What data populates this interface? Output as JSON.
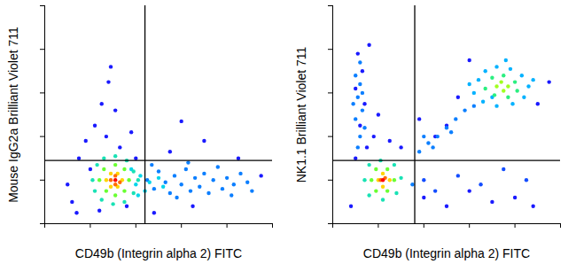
{
  "chart_data": [
    {
      "type": "scatter",
      "x_label": "CD49b (Integrin alpha 2) FITC",
      "y_label": "Mouse IgG2a Brilliant Violet 711",
      "xlim": [
        0,
        100
      ],
      "ylim": [
        0,
        100
      ],
      "xticks": [
        0,
        20,
        40,
        60,
        80,
        100
      ],
      "yticks": [
        0,
        20,
        40,
        60,
        80,
        100
      ],
      "tick_labels": false,
      "gates": {
        "x": 44,
        "y": 29
      },
      "points": [
        {
          "x": 12,
          "y": 10,
          "density": 0.1
        },
        {
          "x": 15,
          "y": 30,
          "density": 0.1
        },
        {
          "x": 18,
          "y": 38,
          "density": 0.1
        },
        {
          "x": 22,
          "y": 45,
          "density": 0.1
        },
        {
          "x": 25,
          "y": 55,
          "density": 0.1
        },
        {
          "x": 28,
          "y": 65,
          "density": 0.1
        },
        {
          "x": 29,
          "y": 72,
          "density": 0.1
        },
        {
          "x": 31,
          "y": 52,
          "density": 0.1
        },
        {
          "x": 27,
          "y": 40,
          "density": 0.1
        },
        {
          "x": 33,
          "y": 35,
          "density": 0.1
        },
        {
          "x": 20,
          "y": 25,
          "density": 0.1
        },
        {
          "x": 10,
          "y": 18,
          "density": 0.1
        },
        {
          "x": 14,
          "y": 5,
          "density": 0.1
        },
        {
          "x": 24,
          "y": 6,
          "density": 0.1
        },
        {
          "x": 36,
          "y": 8,
          "density": 0.1
        },
        {
          "x": 40,
          "y": 30,
          "density": 0.1
        },
        {
          "x": 38,
          "y": 42,
          "density": 0.1
        },
        {
          "x": 60,
          "y": 47,
          "density": 0.1
        },
        {
          "x": 70,
          "y": 38,
          "density": 0.1
        },
        {
          "x": 55,
          "y": 33,
          "density": 0.1
        },
        {
          "x": 85,
          "y": 30,
          "density": 0.1
        },
        {
          "x": 95,
          "y": 22,
          "density": 0.1
        },
        {
          "x": 48,
          "y": 5,
          "density": 0.1
        },
        {
          "x": 65,
          "y": 8,
          "density": 0.1
        },
        {
          "x": 45,
          "y": 20,
          "density": 0.2
        },
        {
          "x": 48,
          "y": 16,
          "density": 0.2
        },
        {
          "x": 50,
          "y": 24,
          "density": 0.2
        },
        {
          "x": 53,
          "y": 19,
          "density": 0.2
        },
        {
          "x": 55,
          "y": 14,
          "density": 0.2
        },
        {
          "x": 57,
          "y": 22,
          "density": 0.2
        },
        {
          "x": 60,
          "y": 18,
          "density": 0.2
        },
        {
          "x": 62,
          "y": 25,
          "density": 0.2
        },
        {
          "x": 64,
          "y": 15,
          "density": 0.2
        },
        {
          "x": 66,
          "y": 21,
          "density": 0.2
        },
        {
          "x": 68,
          "y": 17,
          "density": 0.2
        },
        {
          "x": 70,
          "y": 23,
          "density": 0.2
        },
        {
          "x": 72,
          "y": 14,
          "density": 0.2
        },
        {
          "x": 74,
          "y": 20,
          "density": 0.2
        },
        {
          "x": 76,
          "y": 26,
          "density": 0.2
        },
        {
          "x": 78,
          "y": 16,
          "density": 0.2
        },
        {
          "x": 80,
          "y": 21,
          "density": 0.2
        },
        {
          "x": 83,
          "y": 18,
          "density": 0.2
        },
        {
          "x": 86,
          "y": 23,
          "density": 0.2
        },
        {
          "x": 89,
          "y": 19,
          "density": 0.2
        },
        {
          "x": 91,
          "y": 15,
          "density": 0.2
        },
        {
          "x": 47,
          "y": 27,
          "density": 0.2
        },
        {
          "x": 58,
          "y": 12,
          "density": 0.2
        },
        {
          "x": 63,
          "y": 28,
          "density": 0.2
        },
        {
          "x": 82,
          "y": 13,
          "density": 0.2
        },
        {
          "x": 40,
          "y": 18,
          "density": 0.3
        },
        {
          "x": 42,
          "y": 22,
          "density": 0.3
        },
        {
          "x": 44,
          "y": 15,
          "density": 0.3
        },
        {
          "x": 46,
          "y": 19,
          "density": 0.3
        },
        {
          "x": 50,
          "y": 21,
          "density": 0.3
        },
        {
          "x": 52,
          "y": 17,
          "density": 0.3
        },
        {
          "x": 38,
          "y": 25,
          "density": 0.3
        },
        {
          "x": 41,
          "y": 13,
          "density": 0.3
        },
        {
          "x": 21,
          "y": 20,
          "density": 0.35
        },
        {
          "x": 23,
          "y": 27,
          "density": 0.35
        },
        {
          "x": 26,
          "y": 30,
          "density": 0.35
        },
        {
          "x": 31,
          "y": 31,
          "density": 0.35
        },
        {
          "x": 36,
          "y": 29,
          "density": 0.35
        },
        {
          "x": 39,
          "y": 24,
          "density": 0.35
        },
        {
          "x": 41,
          "y": 20,
          "density": 0.35
        },
        {
          "x": 39,
          "y": 14,
          "density": 0.35
        },
        {
          "x": 35,
          "y": 10,
          "density": 0.35
        },
        {
          "x": 30,
          "y": 9,
          "density": 0.35
        },
        {
          "x": 25,
          "y": 11,
          "density": 0.35
        },
        {
          "x": 22,
          "y": 15,
          "density": 0.35
        },
        {
          "x": 24,
          "y": 20,
          "density": 0.5
        },
        {
          "x": 26,
          "y": 25,
          "density": 0.5
        },
        {
          "x": 31,
          "y": 27,
          "density": 0.5
        },
        {
          "x": 35,
          "y": 25,
          "density": 0.5
        },
        {
          "x": 37,
          "y": 20,
          "density": 0.5
        },
        {
          "x": 35,
          "y": 15,
          "density": 0.5
        },
        {
          "x": 31,
          "y": 13,
          "density": 0.5
        },
        {
          "x": 27,
          "y": 15,
          "density": 0.5
        },
        {
          "x": 27,
          "y": 20,
          "density": 0.7
        },
        {
          "x": 29,
          "y": 23,
          "density": 0.7
        },
        {
          "x": 32,
          "y": 23,
          "density": 0.7
        },
        {
          "x": 34,
          "y": 20,
          "density": 0.7
        },
        {
          "x": 32,
          "y": 17,
          "density": 0.7
        },
        {
          "x": 29,
          "y": 17,
          "density": 0.7
        },
        {
          "x": 29,
          "y": 20,
          "density": 0.85
        },
        {
          "x": 31,
          "y": 22,
          "density": 0.85
        },
        {
          "x": 33,
          "y": 19,
          "density": 0.85
        },
        {
          "x": 31,
          "y": 18,
          "density": 0.85
        },
        {
          "x": 31,
          "y": 20,
          "density": 1
        }
      ]
    },
    {
      "type": "scatter",
      "x_label": "CD49b (Integrin alpha 2) FITC",
      "y_label": "NK1.1 Brilliant Violet 711",
      "xlim": [
        0,
        100
      ],
      "ylim": [
        0,
        100
      ],
      "xticks": [
        0,
        20,
        40,
        60,
        80,
        100
      ],
      "yticks": [
        0,
        20,
        40,
        60,
        80,
        100
      ],
      "tick_labels": false,
      "gates": {
        "x": 36,
        "y": 29
      },
      "points": [
        {
          "x": 8,
          "y": 8,
          "density": 0.1
        },
        {
          "x": 10,
          "y": 30,
          "density": 0.1
        },
        {
          "x": 15,
          "y": 35,
          "density": 0.1
        },
        {
          "x": 12,
          "y": 45,
          "density": 0.1
        },
        {
          "x": 14,
          "y": 55,
          "density": 0.1
        },
        {
          "x": 10,
          "y": 62,
          "density": 0.1
        },
        {
          "x": 13,
          "y": 70,
          "density": 0.1
        },
        {
          "x": 11,
          "y": 78,
          "density": 0.1
        },
        {
          "x": 16,
          "y": 82,
          "density": 0.1
        },
        {
          "x": 18,
          "y": 40,
          "density": 0.1
        },
        {
          "x": 20,
          "y": 50,
          "density": 0.1
        },
        {
          "x": 25,
          "y": 38,
          "density": 0.1
        },
        {
          "x": 30,
          "y": 35,
          "density": 0.1
        },
        {
          "x": 40,
          "y": 12,
          "density": 0.1
        },
        {
          "x": 50,
          "y": 8,
          "density": 0.1
        },
        {
          "x": 60,
          "y": 15,
          "density": 0.1
        },
        {
          "x": 70,
          "y": 10,
          "density": 0.1
        },
        {
          "x": 80,
          "y": 12,
          "density": 0.1
        },
        {
          "x": 88,
          "y": 8,
          "density": 0.1
        },
        {
          "x": 45,
          "y": 40,
          "density": 0.1
        },
        {
          "x": 50,
          "y": 45,
          "density": 0.1
        },
        {
          "x": 38,
          "y": 48,
          "density": 0.1
        },
        {
          "x": 95,
          "y": 65,
          "density": 0.1
        },
        {
          "x": 90,
          "y": 55,
          "density": 0.1
        },
        {
          "x": 60,
          "y": 75,
          "density": 0.1
        },
        {
          "x": 55,
          "y": 58,
          "density": 0.1
        },
        {
          "x": 40,
          "y": 20,
          "density": 0.15
        },
        {
          "x": 45,
          "y": 15,
          "density": 0.15
        },
        {
          "x": 55,
          "y": 22,
          "density": 0.15
        },
        {
          "x": 65,
          "y": 18,
          "density": 0.15
        },
        {
          "x": 75,
          "y": 25,
          "density": 0.15
        },
        {
          "x": 85,
          "y": 20,
          "density": 0.15
        },
        {
          "x": 11,
          "y": 35,
          "density": 0.2
        },
        {
          "x": 12,
          "y": 40,
          "density": 0.2
        },
        {
          "x": 10,
          "y": 48,
          "density": 0.2
        },
        {
          "x": 13,
          "y": 52,
          "density": 0.2
        },
        {
          "x": 11,
          "y": 58,
          "density": 0.2
        },
        {
          "x": 12,
          "y": 64,
          "density": 0.2
        },
        {
          "x": 10,
          "y": 68,
          "density": 0.2
        },
        {
          "x": 12,
          "y": 74,
          "density": 0.2
        },
        {
          "x": 14,
          "y": 44,
          "density": 0.2
        },
        {
          "x": 9,
          "y": 55,
          "density": 0.2
        },
        {
          "x": 13,
          "y": 60,
          "density": 0.2
        },
        {
          "x": 38,
          "y": 33,
          "density": 0.2
        },
        {
          "x": 42,
          "y": 37,
          "density": 0.2
        },
        {
          "x": 46,
          "y": 40,
          "density": 0.2
        },
        {
          "x": 50,
          "y": 44,
          "density": 0.2
        },
        {
          "x": 54,
          "y": 48,
          "density": 0.2
        },
        {
          "x": 58,
          "y": 52,
          "density": 0.2
        },
        {
          "x": 62,
          "y": 54,
          "density": 0.2
        },
        {
          "x": 44,
          "y": 35,
          "density": 0.2
        },
        {
          "x": 52,
          "y": 42,
          "density": 0.2
        },
        {
          "x": 40,
          "y": 40,
          "density": 0.2
        },
        {
          "x": 35,
          "y": 18,
          "density": 0.2
        },
        {
          "x": 62,
          "y": 60,
          "density": 0.25
        },
        {
          "x": 64,
          "y": 66,
          "density": 0.25
        },
        {
          "x": 67,
          "y": 70,
          "density": 0.25
        },
        {
          "x": 72,
          "y": 72,
          "density": 0.25
        },
        {
          "x": 78,
          "y": 71,
          "density": 0.25
        },
        {
          "x": 83,
          "y": 68,
          "density": 0.25
        },
        {
          "x": 86,
          "y": 63,
          "density": 0.25
        },
        {
          "x": 84,
          "y": 58,
          "density": 0.25
        },
        {
          "x": 79,
          "y": 55,
          "density": 0.25
        },
        {
          "x": 72,
          "y": 54,
          "density": 0.25
        },
        {
          "x": 66,
          "y": 56,
          "density": 0.25
        },
        {
          "x": 88,
          "y": 66,
          "density": 0.25
        },
        {
          "x": 60,
          "y": 64,
          "density": 0.25
        },
        {
          "x": 76,
          "y": 75,
          "density": 0.25
        },
        {
          "x": 70,
          "y": 58,
          "density": 0.25
        },
        {
          "x": 14,
          "y": 20,
          "density": 0.35
        },
        {
          "x": 16,
          "y": 27,
          "density": 0.35
        },
        {
          "x": 21,
          "y": 29,
          "density": 0.35
        },
        {
          "x": 27,
          "y": 27,
          "density": 0.35
        },
        {
          "x": 30,
          "y": 21,
          "density": 0.35
        },
        {
          "x": 28,
          "y": 14,
          "density": 0.35
        },
        {
          "x": 22,
          "y": 11,
          "density": 0.35
        },
        {
          "x": 16,
          "y": 13,
          "density": 0.35
        },
        {
          "x": 67,
          "y": 62,
          "density": 0.4
        },
        {
          "x": 70,
          "y": 67,
          "density": 0.4
        },
        {
          "x": 75,
          "y": 68,
          "density": 0.4
        },
        {
          "x": 80,
          "y": 65,
          "density": 0.4
        },
        {
          "x": 81,
          "y": 61,
          "density": 0.4
        },
        {
          "x": 77,
          "y": 58,
          "density": 0.4
        },
        {
          "x": 71,
          "y": 59,
          "density": 0.4
        },
        {
          "x": 17,
          "y": 20,
          "density": 0.5
        },
        {
          "x": 19,
          "y": 25,
          "density": 0.5
        },
        {
          "x": 24,
          "y": 25,
          "density": 0.5
        },
        {
          "x": 27,
          "y": 20,
          "density": 0.5
        },
        {
          "x": 24,
          "y": 15,
          "density": 0.5
        },
        {
          "x": 19,
          "y": 15,
          "density": 0.5
        },
        {
          "x": 72,
          "y": 63,
          "density": 0.55
        },
        {
          "x": 74,
          "y": 65,
          "density": 0.55
        },
        {
          "x": 77,
          "y": 63,
          "density": 0.55
        },
        {
          "x": 75,
          "y": 61,
          "density": 0.55
        },
        {
          "x": 20,
          "y": 20,
          "density": 0.7
        },
        {
          "x": 22,
          "y": 23,
          "density": 0.7
        },
        {
          "x": 25,
          "y": 20,
          "density": 0.7
        },
        {
          "x": 22,
          "y": 17,
          "density": 0.7
        },
        {
          "x": 21,
          "y": 20,
          "density": 0.85
        },
        {
          "x": 23,
          "y": 21,
          "density": 0.85
        },
        {
          "x": 22,
          "y": 20,
          "density": 1
        }
      ]
    }
  ]
}
